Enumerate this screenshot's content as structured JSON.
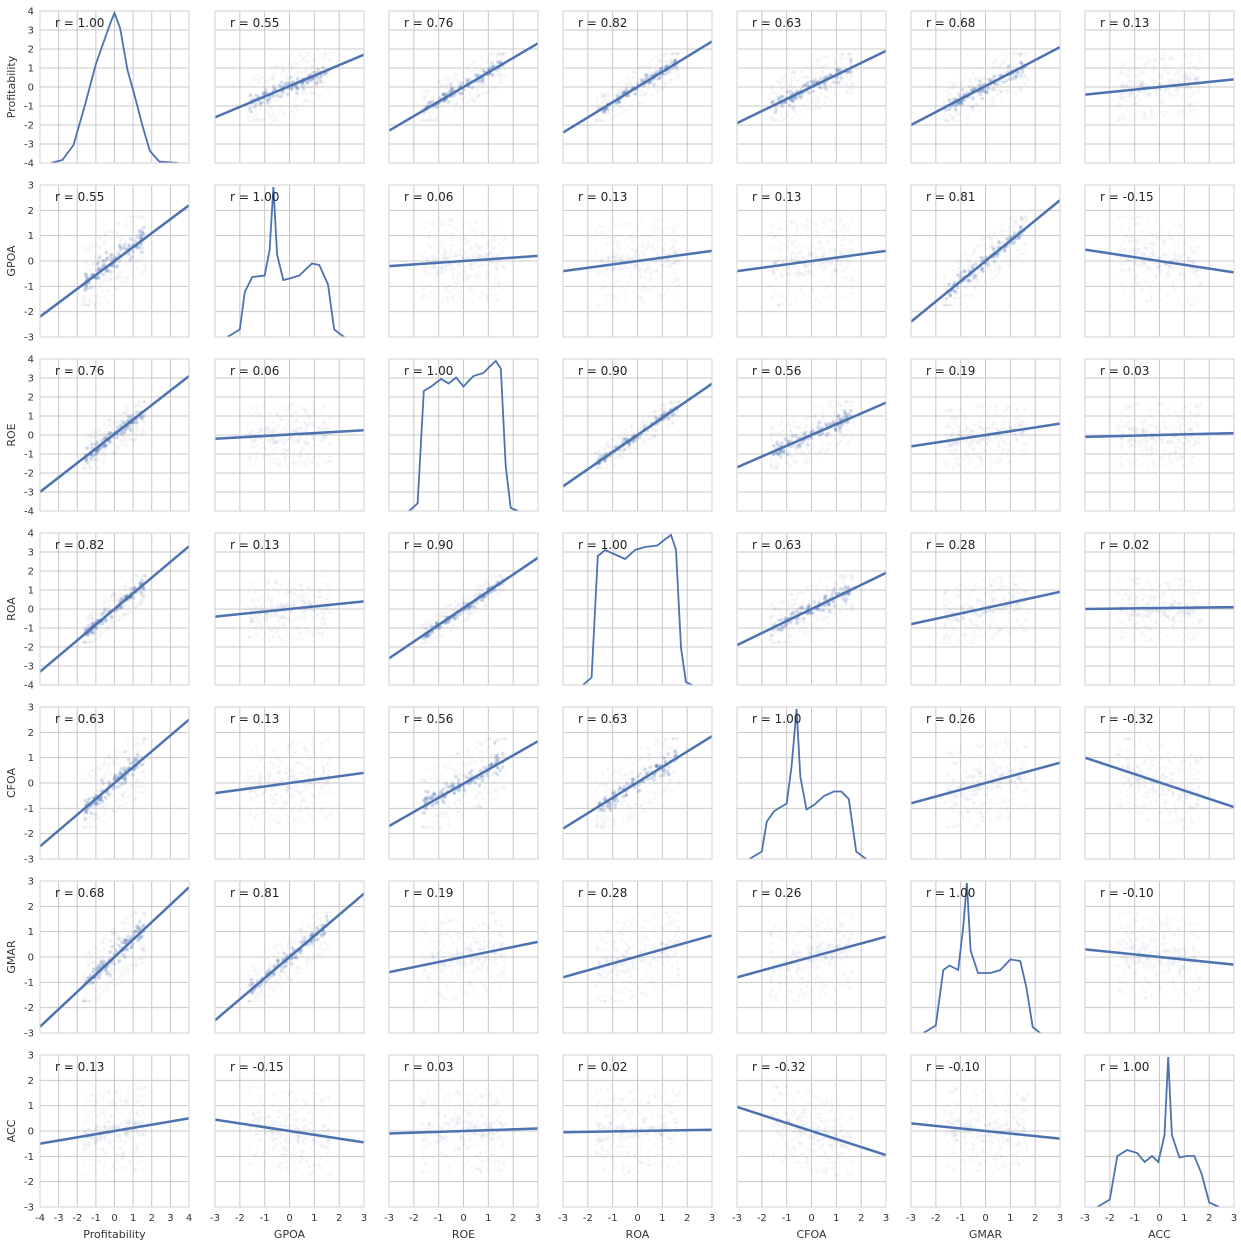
{
  "chart_data": {
    "type": "scatter",
    "layout": "pairplot",
    "variables": [
      "Profitability",
      "GPOA",
      "ROE",
      "ROA",
      "CFOA",
      "GMAR",
      "ACC"
    ],
    "xlabels": [
      "Profitability",
      "GPOA",
      "ROE",
      "ROA",
      "CFOA",
      "GMAR",
      "ACC"
    ],
    "ylabels": [
      "Profitability",
      "GPOA",
      "ROE",
      "ROA",
      "CFOA",
      "GMAR",
      "ACC"
    ],
    "axis_ranges": {
      "Profitability": [
        -4,
        4
      ],
      "GPOA": [
        -3,
        3
      ],
      "ROE": [
        -4,
        4
      ],
      "ROA": [
        -4,
        4
      ],
      "CFOA": [
        -3,
        3
      ],
      "GMAR": [
        -3,
        3
      ],
      "ACC": [
        -3,
        3
      ]
    },
    "x_ticks": {
      "Profitability": [
        -4,
        -3,
        -2,
        -1,
        0,
        1,
        2,
        3,
        4
      ],
      "GPOA": [
        -3,
        -2,
        -1,
        0,
        1,
        2,
        3
      ],
      "ROE": [
        -3,
        -2,
        -1,
        0,
        1,
        2,
        3
      ],
      "ROA": [
        -3,
        -2,
        -1,
        0,
        1,
        2,
        3
      ],
      "CFOA": [
        -3,
        -2,
        -1,
        0,
        1,
        2,
        3
      ],
      "GMAR": [
        -3,
        -2,
        -1,
        0,
        1,
        2,
        3
      ],
      "ACC": [
        -3,
        -2,
        -1,
        0,
        1,
        2,
        3
      ]
    },
    "x_ranges": {
      "Profitability": [
        -4,
        4
      ],
      "GPOA": [
        -3,
        3
      ],
      "ROE": [
        -3,
        3
      ],
      "ROA": [
        -3,
        3
      ],
      "CFOA": [
        -3,
        3
      ],
      "GMAR": [
        -3,
        3
      ],
      "ACC": [
        -3,
        3
      ]
    },
    "y_ticks": {
      "Profitability": [
        -4,
        -3,
        -2,
        -1,
        0,
        1,
        2,
        3,
        4
      ],
      "GPOA": [
        -3,
        -2,
        -1,
        0,
        1,
        2,
        3
      ],
      "ROE": [
        -4,
        -3,
        -2,
        -1,
        0,
        1,
        2,
        3,
        4
      ],
      "ROA": [
        -4,
        -3,
        -2,
        -1,
        0,
        1,
        2,
        3,
        4
      ],
      "CFOA": [
        -3,
        -2,
        -1,
        0,
        1,
        2,
        3
      ],
      "GMAR": [
        -3,
        -2,
        -1,
        0,
        1,
        2,
        3
      ],
      "ACC": [
        -3,
        -2,
        -1,
        0,
        1,
        2,
        3
      ]
    },
    "correlations": [
      [
        "1.00",
        "0.55",
        "0.76",
        "0.82",
        "0.63",
        "0.68",
        "0.13"
      ],
      [
        "0.55",
        "1.00",
        "0.06",
        "0.13",
        "0.13",
        "0.81",
        "-0.15"
      ],
      [
        "0.76",
        "0.06",
        "1.00",
        "0.90",
        "0.56",
        "0.19",
        "0.03"
      ],
      [
        "0.82",
        "0.13",
        "0.90",
        "1.00",
        "0.63",
        "0.28",
        "0.02"
      ],
      [
        "0.63",
        "0.13",
        "0.56",
        "0.63",
        "1.00",
        "0.26",
        "-0.32"
      ],
      [
        "0.68",
        "0.81",
        "0.19",
        "0.28",
        "0.26",
        "1.00",
        "-0.10"
      ],
      [
        "0.13",
        "-0.15",
        "0.03",
        "0.02",
        "-0.32",
        "-0.10",
        "1.00"
      ]
    ],
    "r_prefix": "r = ",
    "fit_lines": [
      [
        null,
        [
          [
            -3,
            -1.6
          ],
          [
            3,
            1.7
          ]
        ],
        [
          [
            -3,
            -2.3
          ],
          [
            3,
            2.3
          ]
        ],
        [
          [
            -3,
            -2.4
          ],
          [
            3,
            2.4
          ]
        ],
        [
          [
            -3,
            -1.9
          ],
          [
            3,
            1.9
          ]
        ],
        [
          [
            -3,
            -2.0
          ],
          [
            3,
            2.1
          ]
        ],
        [
          [
            -3,
            -0.4
          ],
          [
            3,
            0.4
          ]
        ]
      ],
      [
        [
          [
            -4,
            -2.2
          ],
          [
            4,
            2.2
          ]
        ],
        null,
        [
          [
            -3,
            -0.2
          ],
          [
            3,
            0.2
          ]
        ],
        [
          [
            -3,
            -0.4
          ],
          [
            3,
            0.4
          ]
        ],
        [
          [
            -3,
            -0.4
          ],
          [
            3,
            0.4
          ]
        ],
        [
          [
            -3,
            -2.4
          ],
          [
            3,
            2.4
          ]
        ],
        [
          [
            -3,
            0.45
          ],
          [
            3,
            -0.45
          ]
        ]
      ],
      [
        [
          [
            -4,
            -3.0
          ],
          [
            4,
            3.1
          ]
        ],
        [
          [
            -3,
            -0.2
          ],
          [
            3,
            0.25
          ]
        ],
        null,
        [
          [
            -3,
            -2.7
          ],
          [
            3,
            2.7
          ]
        ],
        [
          [
            -3,
            -1.7
          ],
          [
            3,
            1.7
          ]
        ],
        [
          [
            -3,
            -0.6
          ],
          [
            3,
            0.6
          ]
        ],
        [
          [
            -3,
            -0.1
          ],
          [
            3,
            0.1
          ]
        ]
      ],
      [
        [
          [
            -4,
            -3.3
          ],
          [
            4,
            3.3
          ]
        ],
        [
          [
            -3,
            -0.4
          ],
          [
            3,
            0.4
          ]
        ],
        [
          [
            -3,
            -2.6
          ],
          [
            3,
            2.7
          ]
        ],
        null,
        [
          [
            -3,
            -1.9
          ],
          [
            3,
            1.9
          ]
        ],
        [
          [
            -3,
            -0.8
          ],
          [
            3,
            0.9
          ]
        ],
        [
          [
            -3,
            0.0
          ],
          [
            3,
            0.1
          ]
        ]
      ],
      [
        [
          [
            -4,
            -2.5
          ],
          [
            4,
            2.5
          ]
        ],
        [
          [
            -3,
            -0.4
          ],
          [
            3,
            0.4
          ]
        ],
        [
          [
            -3,
            -1.7
          ],
          [
            3,
            1.65
          ]
        ],
        [
          [
            -3,
            -1.8
          ],
          [
            3,
            1.85
          ]
        ],
        null,
        [
          [
            -3,
            -0.8
          ],
          [
            3,
            0.8
          ]
        ],
        [
          [
            -3,
            1.0
          ],
          [
            3,
            -0.95
          ]
        ]
      ],
      [
        [
          [
            -4,
            -2.75
          ],
          [
            4,
            2.75
          ]
        ],
        [
          [
            -3,
            -2.5
          ],
          [
            3,
            2.5
          ]
        ],
        [
          [
            -3,
            -0.6
          ],
          [
            3,
            0.6
          ]
        ],
        [
          [
            -3,
            -0.8
          ],
          [
            3,
            0.85
          ]
        ],
        [
          [
            -3,
            -0.8
          ],
          [
            3,
            0.8
          ]
        ],
        null,
        [
          [
            -3,
            0.3
          ],
          [
            3,
            -0.3
          ]
        ]
      ],
      [
        [
          [
            -4,
            -0.5
          ],
          [
            4,
            0.5
          ]
        ],
        [
          [
            -3,
            0.45
          ],
          [
            3,
            -0.45
          ]
        ],
        [
          [
            -3,
            -0.1
          ],
          [
            3,
            0.1
          ]
        ],
        [
          [
            -3,
            -0.05
          ],
          [
            3,
            0.05
          ]
        ],
        [
          [
            -3,
            0.95
          ],
          [
            3,
            -0.95
          ]
        ],
        [
          [
            -3,
            0.3
          ],
          [
            3,
            -0.3
          ]
        ],
        null
      ]
    ],
    "kde_curves": {
      "Profitability": [
        [
          -3.4,
          0.0
        ],
        [
          -2.8,
          0.02
        ],
        [
          -2.2,
          0.12
        ],
        [
          -1.6,
          0.38
        ],
        [
          -1.0,
          0.66
        ],
        [
          -0.6,
          0.8
        ],
        [
          -0.2,
          0.94
        ],
        [
          0.0,
          1.0
        ],
        [
          0.3,
          0.9
        ],
        [
          0.7,
          0.62
        ],
        [
          1.1,
          0.44
        ],
        [
          1.5,
          0.25
        ],
        [
          1.9,
          0.08
        ],
        [
          2.4,
          0.01
        ],
        [
          3.4,
          0.0
        ]
      ],
      "GPOA": [
        [
          -2.5,
          0.0
        ],
        [
          -2.0,
          0.05
        ],
        [
          -1.8,
          0.3
        ],
        [
          -1.5,
          0.4
        ],
        [
          -1.0,
          0.41
        ],
        [
          -0.8,
          0.58
        ],
        [
          -0.65,
          1.0
        ],
        [
          -0.5,
          0.55
        ],
        [
          -0.25,
          0.38
        ],
        [
          0.0,
          0.39
        ],
        [
          0.4,
          0.41
        ],
        [
          0.9,
          0.49
        ],
        [
          1.2,
          0.48
        ],
        [
          1.55,
          0.35
        ],
        [
          1.8,
          0.05
        ],
        [
          2.2,
          0.0
        ]
      ],
      "ROE": [
        [
          -2.2,
          0.0
        ],
        [
          -1.85,
          0.05
        ],
        [
          -1.6,
          0.8
        ],
        [
          -1.3,
          0.83
        ],
        [
          -0.9,
          0.88
        ],
        [
          -0.6,
          0.85
        ],
        [
          -0.3,
          0.89
        ],
        [
          0.0,
          0.83
        ],
        [
          0.4,
          0.9
        ],
        [
          0.8,
          0.92
        ],
        [
          1.1,
          0.97
        ],
        [
          1.3,
          1.0
        ],
        [
          1.5,
          0.95
        ],
        [
          1.7,
          0.3
        ],
        [
          1.9,
          0.02
        ],
        [
          2.2,
          0.0
        ]
      ],
      "ROA": [
        [
          -2.2,
          0.0
        ],
        [
          -1.85,
          0.05
        ],
        [
          -1.6,
          0.86
        ],
        [
          -1.3,
          0.9
        ],
        [
          -0.9,
          0.87
        ],
        [
          -0.5,
          0.84
        ],
        [
          -0.1,
          0.9
        ],
        [
          0.3,
          0.92
        ],
        [
          0.8,
          0.93
        ],
        [
          1.1,
          0.97
        ],
        [
          1.35,
          1.0
        ],
        [
          1.55,
          0.9
        ],
        [
          1.75,
          0.25
        ],
        [
          1.95,
          0.02
        ],
        [
          2.2,
          0.0
        ]
      ],
      "CFOA": [
        [
          -2.5,
          0.0
        ],
        [
          -2.0,
          0.05
        ],
        [
          -1.8,
          0.25
        ],
        [
          -1.5,
          0.32
        ],
        [
          -1.0,
          0.37
        ],
        [
          -0.8,
          0.62
        ],
        [
          -0.6,
          1.0
        ],
        [
          -0.45,
          0.55
        ],
        [
          -0.2,
          0.33
        ],
        [
          0.1,
          0.36
        ],
        [
          0.5,
          0.42
        ],
        [
          0.9,
          0.45
        ],
        [
          1.2,
          0.45
        ],
        [
          1.5,
          0.4
        ],
        [
          1.8,
          0.05
        ],
        [
          2.2,
          0.0
        ]
      ],
      "GMAR": [
        [
          -2.5,
          0.0
        ],
        [
          -2.0,
          0.05
        ],
        [
          -1.7,
          0.42
        ],
        [
          -1.45,
          0.45
        ],
        [
          -1.1,
          0.42
        ],
        [
          -0.9,
          0.7
        ],
        [
          -0.75,
          1.0
        ],
        [
          -0.6,
          0.55
        ],
        [
          -0.3,
          0.4
        ],
        [
          0.2,
          0.4
        ],
        [
          0.6,
          0.42
        ],
        [
          1.0,
          0.49
        ],
        [
          1.4,
          0.48
        ],
        [
          1.65,
          0.3
        ],
        [
          1.9,
          0.04
        ],
        [
          2.2,
          0.0
        ]
      ],
      "ACC": [
        [
          -2.5,
          0.0
        ],
        [
          -2.0,
          0.05
        ],
        [
          -1.7,
          0.34
        ],
        [
          -1.3,
          0.38
        ],
        [
          -0.9,
          0.36
        ],
        [
          -0.6,
          0.3
        ],
        [
          -0.3,
          0.34
        ],
        [
          -0.05,
          0.3
        ],
        [
          0.2,
          0.48
        ],
        [
          0.35,
          1.0
        ],
        [
          0.5,
          0.48
        ],
        [
          0.8,
          0.33
        ],
        [
          1.1,
          0.34
        ],
        [
          1.4,
          0.34
        ],
        [
          1.7,
          0.22
        ],
        [
          2.0,
          0.03
        ],
        [
          2.4,
          0.0
        ]
      ]
    },
    "grid": true,
    "legend": "none"
  }
}
